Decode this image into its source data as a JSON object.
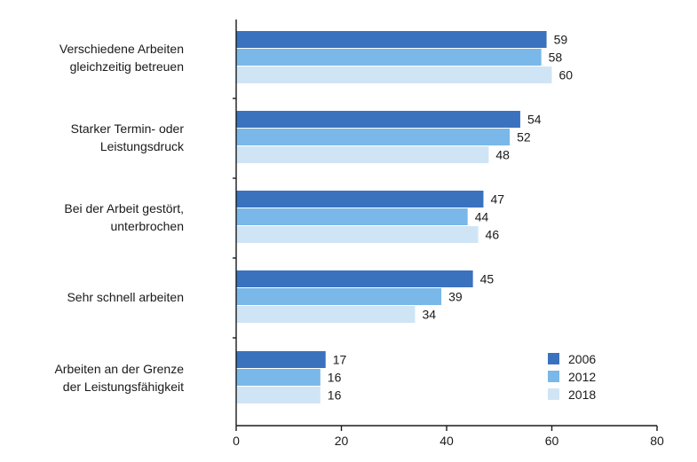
{
  "chart_data": {
    "type": "bar",
    "orientation": "horizontal",
    "categories": [
      [
        "Verschiedene Arbeiten",
        "gleichzeitig betreuen"
      ],
      [
        "Starker Termin- oder",
        "Leistungsdruck"
      ],
      [
        "Bei der Arbeit gestört,",
        "unterbrochen"
      ],
      [
        "Sehr schnell arbeiten"
      ],
      [
        "Arbeiten an der Grenze",
        "der Leistungsfähigkeit"
      ]
    ],
    "series": [
      {
        "name": "2006",
        "color": "#3a72be",
        "values": [
          59,
          54,
          47,
          45,
          17
        ]
      },
      {
        "name": "2012",
        "color": "#79b8e8",
        "values": [
          58,
          52,
          44,
          39,
          16
        ]
      },
      {
        "name": "2018",
        "color": "#cfe5f6",
        "values": [
          60,
          48,
          46,
          34,
          16
        ]
      }
    ],
    "xlim": [
      0,
      80
    ],
    "xticks": [
      "0",
      "20",
      "40",
      "60",
      "80"
    ],
    "legend_position": "bottom-right",
    "grid": false
  }
}
